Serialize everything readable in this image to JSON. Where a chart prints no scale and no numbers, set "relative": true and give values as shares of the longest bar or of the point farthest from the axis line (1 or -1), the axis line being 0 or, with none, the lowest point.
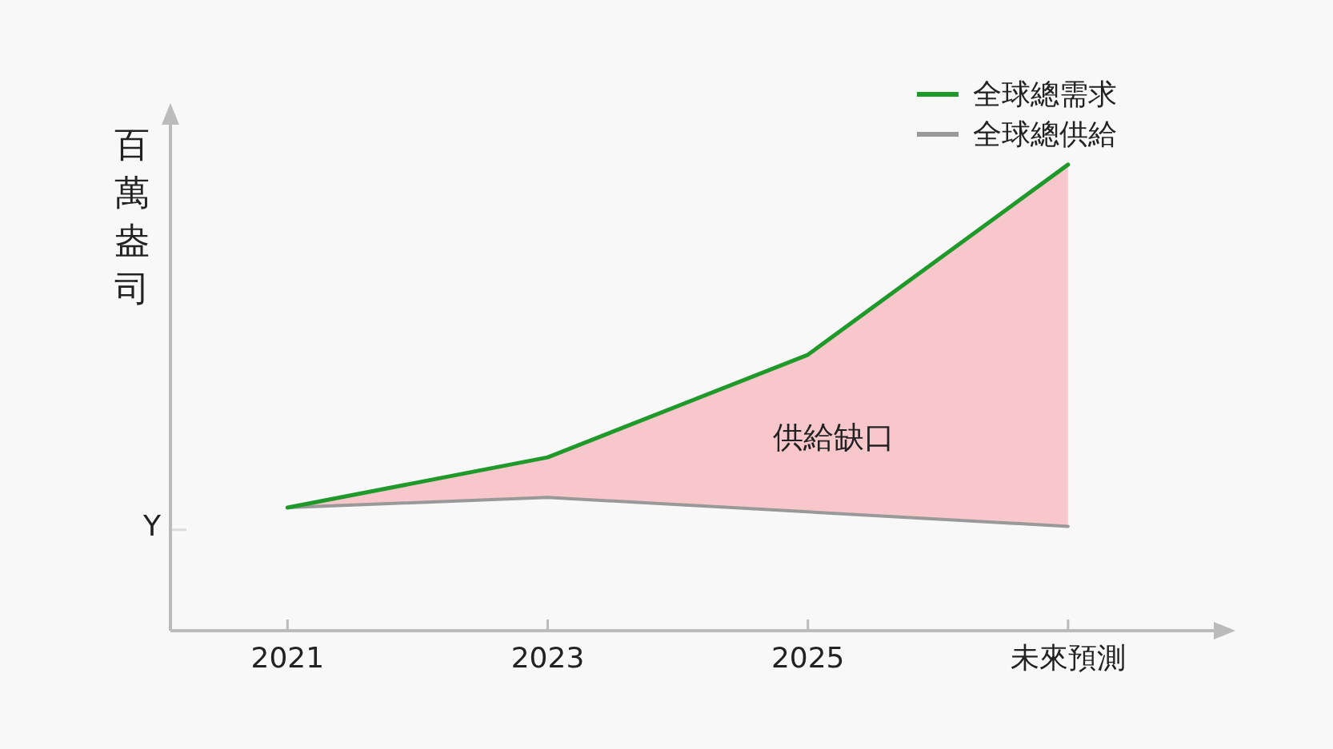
{
  "chart_data": {
    "type": "line",
    "relative": true,
    "ylabel": "百萬盎司",
    "categories": [
      "2021",
      "2023",
      "2025",
      "未來預測"
    ],
    "series": [
      {
        "name": "全球總需求",
        "color": "#1f9a2a",
        "values": [
          0.264,
          0.372,
          0.592,
          1
        ],
        "lower": [
          0.264,
          0.286,
          0.255,
          0.224
        ],
        "upper": [
          0.264,
          0.372,
          0.592,
          1
        ]
      },
      {
        "name": "全球總供給",
        "color": "#999999",
        "values": [
          0.264,
          0.286,
          0.255,
          0.224
        ]
      }
    ],
    "annotations": [
      "Y",
      "供給缺口"
    ],
    "legend": "top right",
    "marker": "none",
    "line_style": "solid"
  }
}
